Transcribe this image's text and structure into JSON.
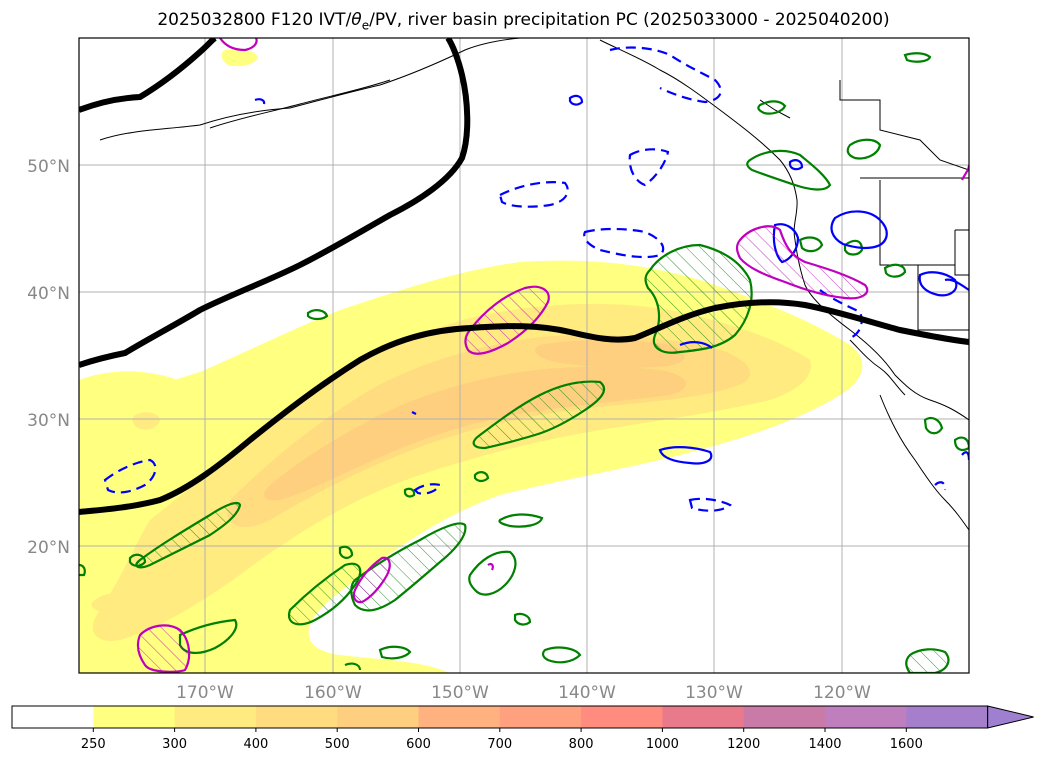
{
  "title": {
    "prefix": "2025032800 F120 IVT/",
    "theta": "θ",
    "theta_sub": "e",
    "suffix": "/PV, river basin precipitation PC (2025033000 - 2025040200)"
  },
  "map": {
    "lat_labels": [
      "50°N",
      "40°N",
      "30°N",
      "20°N"
    ],
    "lon_labels": [
      "170°W",
      "160°W",
      "150°W",
      "140°W",
      "130°W",
      "120°W"
    ],
    "colors": {
      "coast": "#000000",
      "jet": "#000000",
      "green_contour": "#008000",
      "blue_contour": "#0000ff",
      "magenta_contour": "#bf00bf",
      "grid": "#b0b0b0"
    }
  },
  "colorbar": {
    "levels": [
      "250",
      "300",
      "400",
      "500",
      "600",
      "700",
      "800",
      "1000",
      "1200",
      "1400",
      "1600"
    ],
    "colors": [
      "#ffffff",
      "#ffff80",
      "#ffeb7f",
      "#ffdc80",
      "#ffcf80",
      "#ffb27f",
      "#ffa07f",
      "#ff8c7f",
      "#e87a8c",
      "#c97aa6",
      "#bf7fbf",
      "#a67fcc"
    ]
  }
}
